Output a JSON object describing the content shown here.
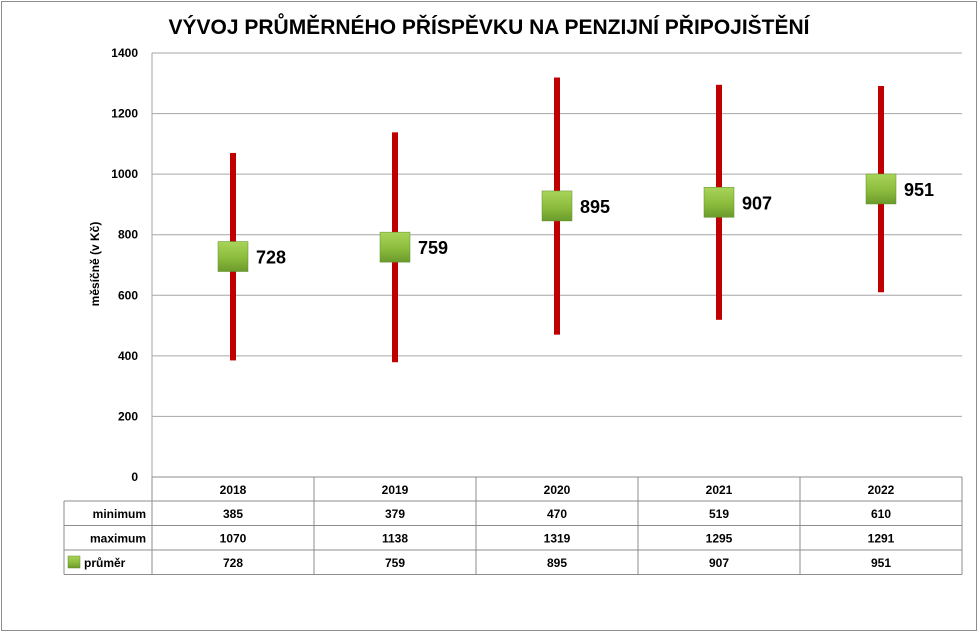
{
  "chart_data": {
    "type": "high-low-average",
    "title": "VÝVOJ PRŮMĚRNÉHO PŘÍSPĚVKU NA PENZIJNÍ PŘIPOJIŠTĚNÍ",
    "ylabel": "měsíčně (v Kč)",
    "ylim": [
      0,
      1400
    ],
    "yticks": [
      "0",
      "200",
      "400",
      "600",
      "800",
      "1000",
      "1200",
      "1400"
    ],
    "grid": true,
    "categories": [
      "2018",
      "2019",
      "2020",
      "2021",
      "2022"
    ],
    "series": [
      {
        "name": "minimum",
        "values": [
          385,
          379,
          470,
          519,
          610
        ]
      },
      {
        "name": "maximum",
        "values": [
          1070,
          1138,
          1319,
          1295,
          1291
        ]
      },
      {
        "name": "průměr",
        "values": [
          728,
          759,
          895,
          907,
          951
        ]
      }
    ],
    "data_labels": [
      "728",
      "759",
      "895",
      "907",
      "951"
    ],
    "table_rows": [
      {
        "label": "minimum",
        "cells": [
          "385",
          "379",
          "470",
          "519",
          "610"
        ]
      },
      {
        "label": "maximum",
        "cells": [
          "1070",
          "1138",
          "1319",
          "1295",
          "1291"
        ]
      },
      {
        "label": "průměr",
        "cells": [
          "728",
          "759",
          "895",
          "907",
          "951"
        ]
      }
    ],
    "colors": {
      "range_bar": "#c00000",
      "marker": "#8cbc3c",
      "marker_dark": "#5e8e2a",
      "grid": "#a6a6a6"
    }
  }
}
